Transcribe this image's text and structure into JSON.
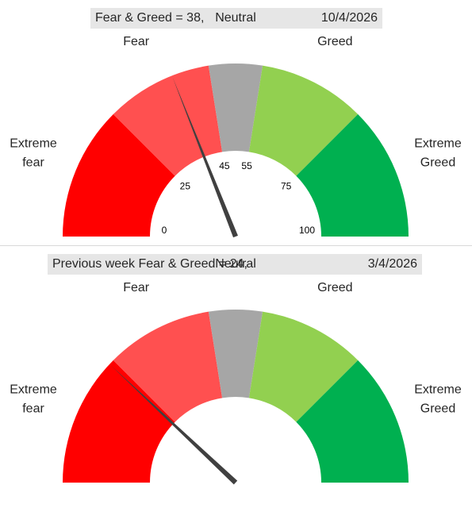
{
  "chart_data": [
    {
      "type": "gauge",
      "title": "Fear & Greed = 38,",
      "date": "10/4/2026",
      "value": 38,
      "range": [
        0,
        100
      ],
      "bands": [
        {
          "label": [
            "Extreme",
            "fear"
          ],
          "from": 0,
          "to": 25,
          "color": "#ff0000"
        },
        {
          "label": [
            "Fear"
          ],
          "from": 25,
          "to": 45,
          "color": "#ff5050"
        },
        {
          "label": [
            "Neutral"
          ],
          "from": 45,
          "to": 55,
          "color": "#a6a6a6"
        },
        {
          "label": [
            "Greed"
          ],
          "from": 55,
          "to": 75,
          "color": "#92d050"
        },
        {
          "label": [
            "Extreme",
            "Greed"
          ],
          "from": 75,
          "to": 100,
          "color": "#00b050"
        }
      ],
      "ticks": [
        0,
        25,
        45,
        55,
        75,
        100
      ],
      "needle_color": "#404040"
    },
    {
      "type": "gauge",
      "title": "Previous week Fear & Greed = 24,",
      "date": "3/4/2026",
      "value": 24,
      "range": [
        0,
        100
      ],
      "bands": [
        {
          "label": [
            "Extreme",
            "fear"
          ],
          "from": 0,
          "to": 25,
          "color": "#ff0000"
        },
        {
          "label": [
            "Fear"
          ],
          "from": 25,
          "to": 45,
          "color": "#ff5050"
        },
        {
          "label": [
            "Neutral"
          ],
          "from": 45,
          "to": 55,
          "color": "#a6a6a6"
        },
        {
          "label": [
            "Greed"
          ],
          "from": 55,
          "to": 75,
          "color": "#92d050"
        },
        {
          "label": [
            "Extreme",
            "Greed"
          ],
          "from": 75,
          "to": 100,
          "color": "#00b050"
        }
      ],
      "ticks": [],
      "needle_color": "#404040"
    }
  ]
}
